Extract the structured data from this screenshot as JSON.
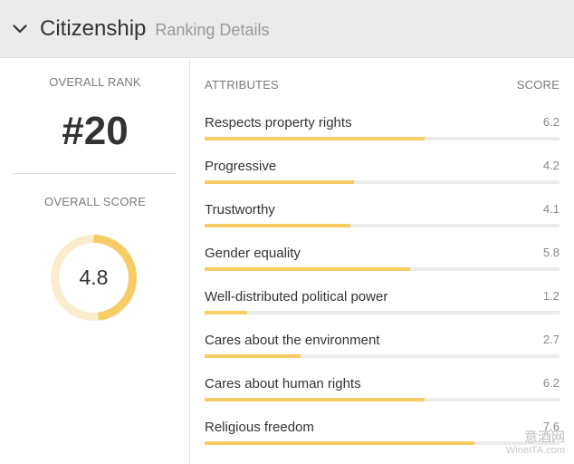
{
  "header": {
    "title": "Citizenship",
    "subtitle": "Ranking Details",
    "toggle_icon": "chevron-down-icon"
  },
  "overall": {
    "rank_label": "OVERALL RANK",
    "rank_value": "#20",
    "score_label": "OVERALL SCORE",
    "score_value": "4.8",
    "score_fraction": 0.48
  },
  "attributes": {
    "header_label": "ATTRIBUTES",
    "score_header_label": "SCORE",
    "max_score": 10,
    "bar_color": "#f6cd64",
    "track_color": "#ebebeb",
    "items": [
      {
        "label": "Respects property rights",
        "score": "6.2"
      },
      {
        "label": "Progressive",
        "score": "4.2"
      },
      {
        "label": "Trustworthy",
        "score": "4.1"
      },
      {
        "label": "Gender equality",
        "score": "5.8"
      },
      {
        "label": "Well-distributed political power",
        "score": "1.2"
      },
      {
        "label": "Cares about the environment",
        "score": "2.7"
      },
      {
        "label": "Cares about human rights",
        "score": "6.2"
      },
      {
        "label": "Religious freedom",
        "score": "7.6"
      }
    ]
  },
  "colors": {
    "accent": "#f6cd64",
    "ring_track": "#fbeccb",
    "header_bg": "#ebebeb"
  },
  "watermark": {
    "line1": "意酒网",
    "line2": "WineITA.com"
  }
}
